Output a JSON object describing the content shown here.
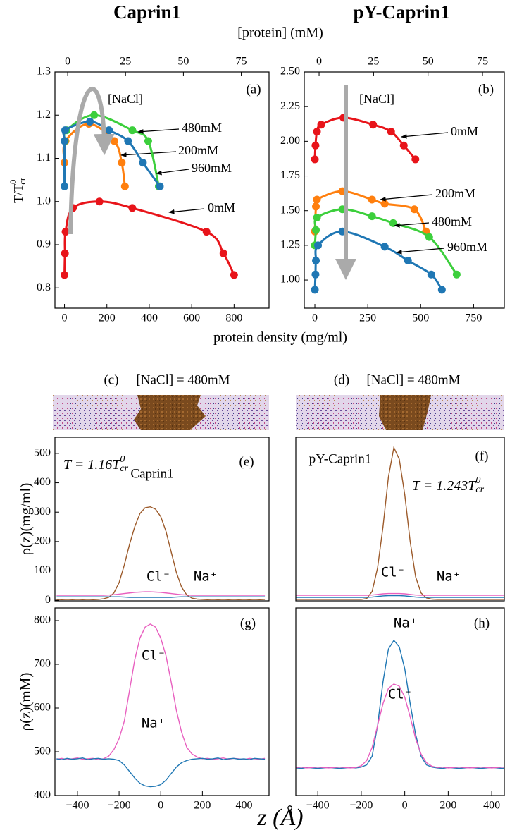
{
  "chart_data": [
    {
      "type": "line",
      "markers": true,
      "smooth": true,
      "title": "Caprin1",
      "panel": "(a)",
      "xlabel": "protein density (mg/ml)",
      "x2label": "[protein] (mM)",
      "ylabel": {
        "text": "T/T",
        "sup": "0",
        "sub": "cr"
      },
      "arrow_label": "[NaCl]",
      "xlim": [
        -45,
        965
      ],
      "xticks": [
        0,
        200,
        400,
        600,
        800
      ],
      "x2lim": [
        -5.5,
        87
      ],
      "x2ticks": [
        0,
        25,
        50,
        75
      ],
      "ylim": [
        0.753,
        1.3
      ],
      "yticks": [
        1.3,
        1.2,
        1.1,
        {
          "value": 1.0,
          "label": "1.0"
        },
        0.9,
        0.8
      ],
      "series": [
        {
          "name": "0mM",
          "color": "#e8141a",
          "x": [
            0,
            2,
            5,
            40,
            165,
            320,
            670,
            750,
            800
          ],
          "values": [
            0.83,
            0.88,
            0.93,
            0.985,
            1.0,
            0.985,
            0.93,
            0.88,
            0.83
          ]
        },
        {
          "name": "200mM",
          "color": "#ff7f0e",
          "x": [
            0,
            5,
            115,
            235,
            270,
            285
          ],
          "values": [
            1.09,
            1.14,
            1.18,
            1.14,
            1.09,
            1.035
          ]
        },
        {
          "name": "480mM",
          "color": "#3ccf3c",
          "x": [
            2,
            10,
            140,
            320,
            395,
            445
          ],
          "values": [
            1.14,
            1.165,
            1.2,
            1.165,
            1.14,
            1.035
          ]
        },
        {
          "name": "960mM",
          "color": "#1f77b4",
          "x": [
            0,
            0,
            3,
            120,
            210,
            300,
            370,
            450
          ],
          "values": [
            1.035,
            1.14,
            1.165,
            1.185,
            1.165,
            1.14,
            1.09,
            1.035
          ]
        }
      ]
    },
    {
      "type": "line",
      "markers": true,
      "smooth": true,
      "title": "pY-Caprin1",
      "panel": "(b)",
      "arrow_label": "[NaCl]",
      "xlim": [
        -50,
        895
      ],
      "xticks": [
        0,
        250,
        500,
        750
      ],
      "x2lim": [
        -6.8,
        85
      ],
      "x2ticks": [
        0,
        25,
        50,
        75
      ],
      "ylim": [
        0.797,
        2.5
      ],
      "yticks": [
        {
          "value": 2.5,
          "label": "2.50"
        },
        2.25,
        {
          "value": 2.0,
          "label": "2.00"
        },
        1.75,
        {
          "value": 1.5,
          "label": "1.50"
        },
        1.25,
        {
          "value": 1.0,
          "label": "1.00"
        }
      ],
      "series": [
        {
          "name": "0mM",
          "color": "#e8141a",
          "x": [
            0,
            3,
            10,
            30,
            135,
            275,
            360,
            420,
            475
          ],
          "values": [
            1.87,
            1.97,
            2.07,
            2.12,
            2.17,
            2.12,
            2.07,
            1.97,
            1.87
          ]
        },
        {
          "name": "200mM",
          "color": "#ff7f0e",
          "x": [
            0,
            5,
            10,
            130,
            270,
            330,
            470,
            525
          ],
          "values": [
            1.35,
            1.53,
            1.58,
            1.64,
            1.58,
            1.55,
            1.51,
            1.35
          ]
        },
        {
          "name": "480mM",
          "color": "#3ccf3c",
          "x": [
            0,
            5,
            10,
            130,
            270,
            370,
            540,
            670
          ],
          "values": [
            1.25,
            1.36,
            1.45,
            1.51,
            1.46,
            1.41,
            1.31,
            1.04
          ]
        },
        {
          "name": "960mM",
          "color": "#1f77b4",
          "x": [
            0,
            3,
            5,
            15,
            130,
            330,
            440,
            550,
            600
          ],
          "values": [
            0.93,
            1.04,
            1.14,
            1.25,
            1.35,
            1.24,
            1.14,
            1.04,
            0.93
          ]
        }
      ]
    },
    {
      "type": "image",
      "panel": "(c)",
      "title": "[NaCl] = 480mM"
    },
    {
      "type": "image",
      "panel": "(d)",
      "title": "[NaCl] = 480mM"
    },
    {
      "type": "line",
      "panel": "(e)",
      "ylabel": "ρ(z)(mg/ml)",
      "annotation": {
        "text": "T = 1.16T",
        "sup": "0",
        "sub": "cr"
      },
      "xlim": [
        -508,
        520
      ],
      "ylim": [
        -2,
        555
      ],
      "yticks": [
        0,
        100,
        200,
        300,
        400,
        500
      ],
      "x": [
        -500,
        -475,
        -450,
        -425,
        -400,
        -375,
        -350,
        -325,
        -300,
        -275,
        -250,
        -225,
        -200,
        -175,
        -150,
        -125,
        -100,
        -75,
        -50,
        -25,
        0,
        25,
        50,
        75,
        100,
        125,
        150,
        175,
        200,
        225,
        250,
        275,
        300,
        325,
        350,
        375,
        400,
        425,
        450,
        475,
        500
      ],
      "series": [
        {
          "name": "Caprin1",
          "color": "#9c5a2a",
          "values": [
            3,
            2,
            3,
            2,
            3,
            2,
            3,
            2,
            3,
            5,
            10,
            25,
            60,
            120,
            190,
            250,
            295,
            315,
            318,
            310,
            285,
            235,
            165,
            95,
            45,
            18,
            7,
            4,
            3,
            2,
            3,
            2,
            3,
            2,
            3,
            2,
            3,
            2,
            3,
            2,
            3
          ]
        },
        {
          "name": "Cl⁻",
          "color": "#e85fbf",
          "values": [
            17,
            17,
            17,
            17,
            17,
            17,
            17,
            17,
            17,
            17,
            18,
            19,
            21,
            23,
            25,
            27,
            28,
            29,
            29,
            28,
            27,
            25,
            23,
            21,
            19,
            18,
            17,
            17,
            17,
            17,
            17,
            17,
            17,
            17,
            17,
            17,
            17,
            17,
            17,
            17,
            17
          ]
        },
        {
          "name": "Na⁺",
          "color": "#1f77b4",
          "values": [
            12,
            12,
            12,
            12,
            12,
            12,
            12,
            12,
            12,
            12,
            12,
            12,
            12,
            11,
            10,
            10,
            10,
            10,
            10,
            10,
            10,
            10,
            10,
            11,
            12,
            12,
            12,
            12,
            12,
            12,
            12,
            12,
            12,
            12,
            12,
            12,
            12,
            12,
            12,
            12,
            12
          ]
        }
      ]
    },
    {
      "type": "line",
      "panel": "(f)",
      "annotation": {
        "text": "T = 1.243T",
        "sup": "0",
        "sub": "cr"
      },
      "xlim": [
        -501,
        458
      ],
      "ylim": [
        -2,
        555
      ],
      "x": [
        -500,
        -475,
        -450,
        -425,
        -400,
        -375,
        -350,
        -325,
        -300,
        -275,
        -250,
        -225,
        -200,
        -175,
        -150,
        -125,
        -100,
        -75,
        -50,
        -25,
        0,
        25,
        50,
        75,
        100,
        125,
        150,
        175,
        200,
        225,
        250,
        275,
        300,
        325,
        350,
        375,
        400,
        425,
        450,
        475,
        500
      ],
      "series": [
        {
          "name": "pY-Caprin1",
          "color": "#9c5a2a",
          "values": [
            3,
            3,
            3,
            3,
            3,
            3,
            3,
            3,
            3,
            3,
            3,
            3,
            3,
            6,
            30,
            110,
            250,
            420,
            520,
            480,
            360,
            200,
            80,
            25,
            8,
            4,
            3,
            3,
            3,
            3,
            3,
            3,
            3,
            3,
            3,
            3,
            3,
            3,
            3,
            3,
            3
          ]
        },
        {
          "name": "Cl⁻",
          "color": "#e85fbf",
          "values": [
            17,
            17,
            17,
            17,
            17,
            17,
            17,
            17,
            17,
            17,
            17,
            17,
            17,
            17,
            18,
            20,
            22,
            23,
            23,
            23,
            22,
            20,
            18,
            17,
            17,
            17,
            17,
            17,
            17,
            17,
            17,
            17,
            17,
            17,
            17,
            17,
            17,
            17,
            17,
            17,
            17
          ]
        },
        {
          "name": "Na⁺",
          "color": "#1f77b4",
          "values": [
            10,
            10,
            10,
            10,
            10,
            10,
            10,
            10,
            10,
            10,
            10,
            10,
            10,
            10,
            11,
            13,
            15,
            16,
            16,
            16,
            15,
            13,
            11,
            10,
            10,
            10,
            10,
            10,
            10,
            10,
            10,
            10,
            10,
            10,
            10,
            10,
            10,
            10,
            10,
            10,
            10
          ]
        }
      ]
    },
    {
      "type": "line",
      "panel": "(g)",
      "ylabel": "ρ(z)(mM)",
      "xlabel": "z (Å)",
      "xlim": [
        -508,
        520
      ],
      "xticks": [
        {
          "value": -400,
          "label": "−400"
        },
        {
          "value": -200,
          "label": "−200"
        },
        0,
        200,
        400
      ],
      "ylim": [
        400,
        829
      ],
      "yticks": [
        400,
        500,
        600,
        700,
        800
      ],
      "x": [
        -500,
        -475,
        -450,
        -425,
        -400,
        -375,
        -350,
        -325,
        -300,
        -275,
        -250,
        -225,
        -200,
        -175,
        -150,
        -125,
        -100,
        -75,
        -50,
        -25,
        0,
        25,
        50,
        75,
        100,
        125,
        150,
        175,
        200,
        225,
        250,
        275,
        300,
        325,
        350,
        375,
        400,
        425,
        450,
        475,
        500
      ],
      "series": [
        {
          "name": "Cl⁻",
          "color": "#e85fbf",
          "values": [
            483,
            485,
            482,
            484,
            486,
            483,
            484,
            485,
            482,
            484,
            490,
            505,
            530,
            570,
            640,
            710,
            760,
            785,
            792,
            785,
            760,
            720,
            660,
            595,
            545,
            510,
            495,
            488,
            484,
            485,
            483,
            484,
            486,
            483,
            485,
            484,
            482,
            485,
            484,
            483,
            485
          ]
        },
        {
          "name": "Na⁺",
          "color": "#1f77b4",
          "values": [
            484,
            482,
            485,
            483,
            484,
            486,
            482,
            484,
            485,
            483,
            484,
            483,
            480,
            470,
            455,
            440,
            428,
            422,
            420,
            421,
            425,
            435,
            450,
            465,
            475,
            480,
            483,
            484,
            485,
            483,
            484,
            486,
            482,
            484,
            485,
            483,
            484,
            482,
            485,
            484,
            483
          ]
        }
      ]
    },
    {
      "type": "line",
      "panel": "(h)",
      "xlim": [
        -501,
        458
      ],
      "xticks": [
        {
          "value": -400,
          "label": "−400"
        },
        {
          "value": -200,
          "label": "−200"
        },
        0,
        200,
        400
      ],
      "ylim": [
        400,
        829
      ],
      "x": [
        -500,
        -475,
        -450,
        -425,
        -400,
        -375,
        -350,
        -325,
        -300,
        -275,
        -250,
        -225,
        -200,
        -175,
        -150,
        -125,
        -100,
        -75,
        -50,
        -25,
        0,
        25,
        50,
        75,
        100,
        125,
        150,
        175,
        200,
        225,
        250,
        275,
        300,
        325,
        350,
        375,
        400,
        425,
        450,
        475,
        500
      ],
      "series": [
        {
          "name": "Na⁺",
          "color": "#1f77b4",
          "values": [
            463,
            462,
            464,
            463,
            462,
            463,
            464,
            463,
            462,
            463,
            464,
            463,
            465,
            470,
            490,
            560,
            660,
            735,
            755,
            740,
            690,
            610,
            540,
            490,
            470,
            465,
            463,
            462,
            464,
            463,
            462,
            463,
            464,
            463,
            462,
            463,
            464,
            463,
            462,
            463,
            464
          ]
        },
        {
          "name": "Cl⁻",
          "color": "#e85fbf",
          "values": [
            464,
            465,
            463,
            464,
            465,
            464,
            463,
            464,
            465,
            464,
            463,
            464,
            468,
            480,
            510,
            560,
            610,
            645,
            655,
            650,
            625,
            580,
            530,
            495,
            475,
            467,
            464,
            465,
            463,
            464,
            465,
            464,
            463,
            464,
            465,
            464,
            463,
            464,
            465,
            464,
            463
          ]
        }
      ]
    }
  ]
}
